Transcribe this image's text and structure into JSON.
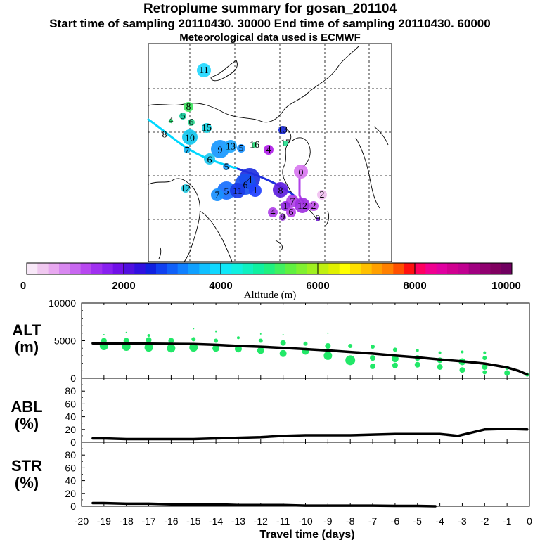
{
  "header": {
    "title": "Retroplume summary for gosan_201104",
    "times": "Start time of sampling 20110430. 30000     End time of sampling 20110430. 60000",
    "met": "Meteorological data used is ECMWF"
  },
  "map": {
    "traj_colors": {
      "cyan": "#00d8ff",
      "blue": "#1f2fdc",
      "violet": "#b040e8"
    },
    "labels": [
      {
        "t": "11",
        "c": "#22d8ff"
      },
      {
        "t": "8",
        "c": "#3ee860"
      },
      {
        "t": "5",
        "c": "#10c898"
      },
      {
        "t": "4",
        "c": "#1cd868"
      },
      {
        "t": "6",
        "c": "#2ad890"
      },
      {
        "t": "8",
        "c": "#444444"
      },
      {
        "t": "10",
        "c": "#10c8f0"
      },
      {
        "t": "15",
        "c": "#18d0e0"
      },
      {
        "t": "7",
        "c": "#10b0f0"
      },
      {
        "t": "9",
        "c": "#1898ff"
      },
      {
        "t": "13",
        "c": "#20a8ff"
      },
      {
        "t": "5",
        "c": "#1890ff"
      },
      {
        "t": "16",
        "c": "#28d878"
      },
      {
        "t": "4",
        "c": "#b020e8"
      },
      {
        "t": "13",
        "c": "#1828d8"
      },
      {
        "t": "17",
        "c": "#28e090"
      },
      {
        "t": "6",
        "c": "#20c8f0"
      },
      {
        "t": "5",
        "c": "#1aa0ff"
      },
      {
        "t": "0",
        "c": "#d878f0"
      },
      {
        "t": "12",
        "c": "#20c8e0"
      },
      {
        "t": "4",
        "c": "#2030e0"
      },
      {
        "t": "6",
        "c": "#1850f0"
      },
      {
        "t": "5",
        "c": "#1870ff"
      },
      {
        "t": "11",
        "c": "#1a3ce8"
      },
      {
        "t": "7",
        "c": "#1890ff"
      },
      {
        "t": "1",
        "c": "#2040ff"
      },
      {
        "t": "8",
        "c": "#6020e0"
      },
      {
        "t": "2",
        "c": "#f0c0f0"
      },
      {
        "t": "7",
        "c": "#b040e8"
      },
      {
        "t": "12",
        "c": "#a030e0"
      },
      {
        "t": "1",
        "c": "#9028e0"
      },
      {
        "t": "2",
        "c": "#c050e8"
      },
      {
        "t": "4",
        "c": "#b040e8"
      },
      {
        "t": "6",
        "c": "#b848e8"
      },
      {
        "t": "9",
        "c": "#a040e0"
      },
      {
        "t": "9",
        "c": "#7020d0"
      }
    ]
  },
  "colorbar": {
    "labels": [
      "0",
      "2000",
      "4000",
      "6000",
      "8000",
      "10000"
    ],
    "title": "Altitude (m)",
    "colors": [
      "#f8e8f8",
      "#f0c8f0",
      "#e8a8f0",
      "#d888f0",
      "#c868f0",
      "#b848f0",
      "#a030f0",
      "#8820f0",
      "#7010e8",
      "#5010e0",
      "#3010e0",
      "#1020e0",
      "#1040f0",
      "#1060f8",
      "#1080ff",
      "#10a0ff",
      "#10c0ff",
      "#10d8ff",
      "#10e8f8",
      "#10f0e0",
      "#10f0c0",
      "#10f0a0",
      "#20f080",
      "#40f060",
      "#60f040",
      "#80f030",
      "#a0f020",
      "#c0f010",
      "#e0f000",
      "#ffff00",
      "#ffe000",
      "#ffc000",
      "#ffa000",
      "#ff8000",
      "#ff5000",
      "#ff1010",
      "#ff0060",
      "#f00090",
      "#e000a0",
      "#d00090",
      "#c00090",
      "#a00080",
      "#900070",
      "#800060",
      "#700060"
    ]
  },
  "chart_data": [
    {
      "type": "scatter",
      "panel": "ALT",
      "ylabel_line1": "ALT",
      "ylabel_line2": "(m)",
      "ylim": [
        0,
        10000
      ],
      "yticks": [
        "0",
        "5000",
        "10000"
      ],
      "xlim": [
        -20,
        0
      ],
      "line_color": "#000000",
      "dot_color": "#22e868",
      "median_line": {
        "x": [
          -19.5,
          -19,
          -18,
          -17,
          -16,
          -15,
          -14,
          -13,
          -12,
          -11,
          -10,
          -9,
          -8,
          -7,
          -6,
          -5,
          -4,
          -3,
          -2,
          -1,
          -0.5,
          -0.1
        ],
        "y": [
          4650,
          4650,
          4600,
          4600,
          4580,
          4550,
          4450,
          4300,
          4200,
          4050,
          3880,
          3700,
          3500,
          3280,
          3020,
          2780,
          2500,
          2250,
          1950,
          1450,
          1000,
          500
        ]
      },
      "dots": [
        {
          "x": -19.0,
          "y": 4300,
          "s": 6
        },
        {
          "x": -19.0,
          "y": 5000,
          "s": 4
        },
        {
          "x": -19.0,
          "y": 5800,
          "s": 1
        },
        {
          "x": -18.0,
          "y": 4200,
          "s": 6
        },
        {
          "x": -18.0,
          "y": 5000,
          "s": 4
        },
        {
          "x": -18.0,
          "y": 6100,
          "s": 1
        },
        {
          "x": -17.0,
          "y": 4100,
          "s": 6
        },
        {
          "x": -17.0,
          "y": 5100,
          "s": 4
        },
        {
          "x": -17.0,
          "y": 5700,
          "s": 2
        },
        {
          "x": -16.0,
          "y": 4000,
          "s": 6
        },
        {
          "x": -16.0,
          "y": 5000,
          "s": 4
        },
        {
          "x": -15.0,
          "y": 4100,
          "s": 6
        },
        {
          "x": -15.0,
          "y": 5200,
          "s": 3
        },
        {
          "x": -15.0,
          "y": 6600,
          "s": 1
        },
        {
          "x": -14.0,
          "y": 4000,
          "s": 5
        },
        {
          "x": -14.0,
          "y": 5000,
          "s": 3
        },
        {
          "x": -14.0,
          "y": 6200,
          "s": 1
        },
        {
          "x": -13.0,
          "y": 3900,
          "s": 5
        },
        {
          "x": -13.0,
          "y": 5400,
          "s": 2
        },
        {
          "x": -12.0,
          "y": 3700,
          "s": 5
        },
        {
          "x": -12.0,
          "y": 5000,
          "s": 3
        },
        {
          "x": -12.0,
          "y": 5900,
          "s": 1
        },
        {
          "x": -11.0,
          "y": 3300,
          "s": 5
        },
        {
          "x": -11.0,
          "y": 4700,
          "s": 4
        },
        {
          "x": -11.0,
          "y": 5800,
          "s": 1
        },
        {
          "x": -10.0,
          "y": 3600,
          "s": 5
        },
        {
          "x": -10.0,
          "y": 4600,
          "s": 3
        },
        {
          "x": -9.0,
          "y": 3000,
          "s": 6
        },
        {
          "x": -9.0,
          "y": 4300,
          "s": 4
        },
        {
          "x": -9.0,
          "y": 6000,
          "s": 1
        },
        {
          "x": -8.0,
          "y": 2400,
          "s": 7
        },
        {
          "x": -8.0,
          "y": 4300,
          "s": 3
        },
        {
          "x": -7.0,
          "y": 1600,
          "s": 4
        },
        {
          "x": -7.0,
          "y": 2700,
          "s": 4
        },
        {
          "x": -7.0,
          "y": 4200,
          "s": 3
        },
        {
          "x": -6.0,
          "y": 1700,
          "s": 4
        },
        {
          "x": -6.0,
          "y": 2600,
          "s": 5
        },
        {
          "x": -6.0,
          "y": 3800,
          "s": 3
        },
        {
          "x": -5.0,
          "y": 1800,
          "s": 4
        },
        {
          "x": -5.0,
          "y": 2700,
          "s": 4
        },
        {
          "x": -5.0,
          "y": 3700,
          "s": 2
        },
        {
          "x": -4.0,
          "y": 1500,
          "s": 4
        },
        {
          "x": -4.0,
          "y": 2400,
          "s": 4
        },
        {
          "x": -4.0,
          "y": 3400,
          "s": 2
        },
        {
          "x": -3.0,
          "y": 1100,
          "s": 4
        },
        {
          "x": -3.0,
          "y": 2200,
          "s": 5
        },
        {
          "x": -3.0,
          "y": 3500,
          "s": 2
        },
        {
          "x": -2.0,
          "y": 800,
          "s": 3
        },
        {
          "x": -2.0,
          "y": 1500,
          "s": 4
        },
        {
          "x": -2.0,
          "y": 2700,
          "s": 3
        },
        {
          "x": -2.0,
          "y": 3400,
          "s": 2
        },
        {
          "x": -1.0,
          "y": 700,
          "s": 4
        },
        {
          "x": -1.0,
          "y": 1400,
          "s": 3
        },
        {
          "x": -0.1,
          "y": 500,
          "s": 3
        }
      ]
    },
    {
      "type": "line",
      "panel": "ABL",
      "ylabel_line1": "ABL",
      "ylabel_line2": "(%)",
      "ylim": [
        0,
        100
      ],
      "yticks": [
        "0",
        "20",
        "40",
        "60",
        "80"
      ],
      "xlim": [
        -20,
        0
      ],
      "x": [
        -19.5,
        -19,
        -18,
        -17,
        -16,
        -15,
        -14,
        -13,
        -12,
        -11,
        -10,
        -9,
        -8,
        -7,
        -6,
        -5,
        -4,
        -3.2,
        -2,
        -1,
        -0.1
      ],
      "y": [
        6,
        6,
        5,
        5,
        5,
        5,
        6,
        7,
        8,
        10,
        11,
        11,
        11,
        12,
        13,
        13,
        13,
        10,
        20,
        21,
        20
      ]
    },
    {
      "type": "line",
      "panel": "STR",
      "ylabel_line1": "STR",
      "ylabel_line2": "(%)",
      "ylim": [
        0,
        100
      ],
      "yticks": [
        "0",
        "20",
        "40",
        "60",
        "80"
      ],
      "xlim": [
        -20,
        0
      ],
      "xlabel": "Travel time (days)",
      "xticks": [
        -20,
        -19,
        -18,
        -17,
        -16,
        -15,
        -14,
        -13,
        -12,
        -11,
        -10,
        -9,
        -8,
        -7,
        -6,
        -5,
        -4,
        -3,
        -2,
        -1,
        0
      ],
      "x": [
        -19.5,
        -19,
        -18,
        -17,
        -16,
        -15,
        -14,
        -13,
        -12,
        -11,
        -10,
        -9,
        -8,
        -7,
        -6,
        -5,
        -4.2
      ],
      "y": [
        5,
        5,
        4,
        4,
        3,
        3,
        3,
        2,
        2,
        2,
        1,
        1,
        1,
        1,
        0.5,
        0.5,
        0
      ]
    }
  ]
}
